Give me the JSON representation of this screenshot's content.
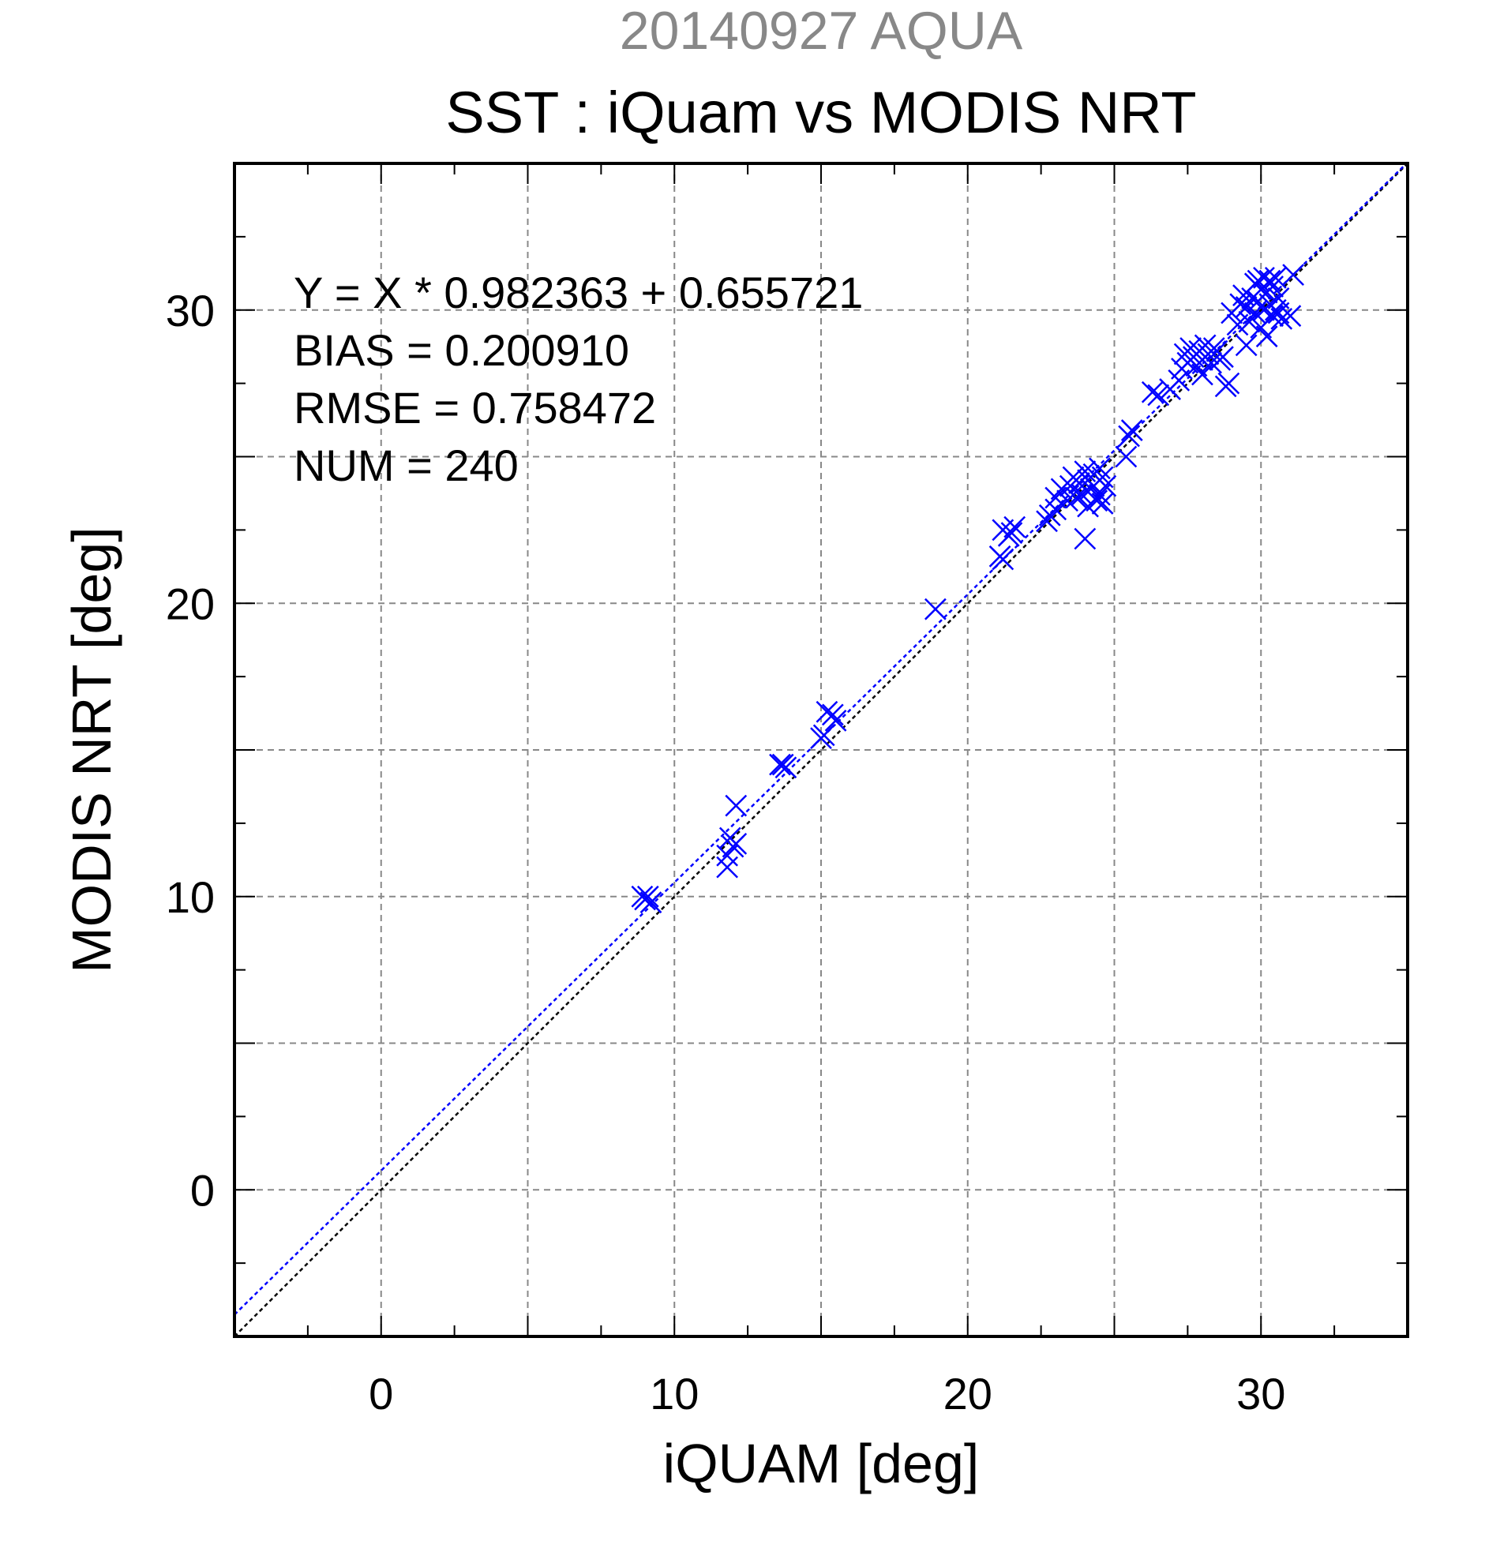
{
  "chart_data": {
    "type": "scatter",
    "title": "20140927 AQUA",
    "subtitle": "SST : iQuam vs MODIS NRT",
    "xlabel": "iQUAM [deg]",
    "ylabel": "MODIS NRT [deg]",
    "xlim": [
      -5,
      35
    ],
    "ylim": [
      -5,
      35
    ],
    "xticks": [
      0,
      10,
      20,
      30
    ],
    "yticks": [
      0,
      10,
      20,
      30
    ],
    "grid": true,
    "annotations": [
      "Y = X * 0.982363 + 0.655721",
      "BIAS = 0.200910",
      "RMSE = 0.758472",
      "NUM = 240"
    ],
    "fit_line": {
      "slope": 0.982363,
      "intercept": 0.655721,
      "color": "#0000ff"
    },
    "identity_line": {
      "slope": 1,
      "intercept": 0,
      "color": "#000000"
    },
    "series": [
      {
        "marker": "x",
        "color": "#0000ff",
        "points": [
          [
            8.9,
            10.0
          ],
          [
            9.1,
            10.0
          ],
          [
            9.2,
            9.8
          ],
          [
            9.0,
            9.9
          ],
          [
            11.8,
            11.0
          ],
          [
            11.8,
            11.4
          ],
          [
            11.9,
            12.0
          ],
          [
            12.0,
            11.7
          ],
          [
            12.1,
            11.8
          ],
          [
            12.1,
            13.1
          ],
          [
            13.6,
            14.5
          ],
          [
            13.7,
            14.5
          ],
          [
            13.8,
            14.4
          ],
          [
            15.0,
            15.4
          ],
          [
            15.1,
            15.5
          ],
          [
            15.2,
            16.3
          ],
          [
            15.4,
            16.2
          ],
          [
            15.5,
            16.0
          ],
          [
            18.9,
            19.8
          ],
          [
            21.1,
            21.6
          ],
          [
            21.2,
            21.5
          ],
          [
            21.2,
            22.5
          ],
          [
            21.4,
            22.3
          ],
          [
            21.5,
            22.4
          ],
          [
            21.6,
            22.6
          ],
          [
            22.7,
            22.8
          ],
          [
            22.8,
            23.0
          ],
          [
            23.0,
            23.2
          ],
          [
            23.0,
            23.6
          ],
          [
            23.2,
            23.9
          ],
          [
            23.4,
            23.5
          ],
          [
            23.5,
            24.0
          ],
          [
            23.6,
            24.3
          ],
          [
            23.7,
            23.6
          ],
          [
            23.8,
            24.1
          ],
          [
            23.9,
            23.7
          ],
          [
            24.0,
            24.5
          ],
          [
            24.0,
            22.2
          ],
          [
            24.1,
            24.2
          ],
          [
            24.2,
            23.9
          ],
          [
            24.3,
            24.4
          ],
          [
            24.3,
            24.0
          ],
          [
            24.4,
            23.5
          ],
          [
            24.5,
            24.6
          ],
          [
            24.5,
            23.7
          ],
          [
            24.6,
            23.4
          ],
          [
            24.6,
            24.3
          ],
          [
            24.7,
            24.0
          ],
          [
            24.1,
            23.3
          ],
          [
            25.4,
            25.0
          ],
          [
            25.5,
            25.7
          ],
          [
            25.6,
            25.9
          ],
          [
            26.3,
            27.2
          ],
          [
            26.5,
            27.1
          ],
          [
            26.9,
            27.3
          ],
          [
            27.2,
            27.6
          ],
          [
            27.3,
            28.0
          ],
          [
            27.4,
            28.5
          ],
          [
            27.5,
            28.2
          ],
          [
            27.6,
            28.7
          ],
          [
            27.7,
            28.4
          ],
          [
            27.8,
            28.1
          ],
          [
            27.9,
            28.6
          ],
          [
            28.0,
            28.3
          ],
          [
            28.0,
            27.8
          ],
          [
            28.1,
            28.8
          ],
          [
            28.2,
            28.5
          ],
          [
            28.3,
            28.2
          ],
          [
            28.4,
            28.7
          ],
          [
            28.5,
            28.6
          ],
          [
            28.6,
            28.3
          ],
          [
            28.7,
            28.4
          ],
          [
            28.8,
            27.4
          ],
          [
            28.9,
            27.5
          ],
          [
            29.0,
            29.9
          ],
          [
            29.2,
            29.5
          ],
          [
            29.3,
            30.2
          ],
          [
            29.4,
            30.5
          ],
          [
            29.5,
            30.1
          ],
          [
            29.5,
            28.8
          ],
          [
            29.6,
            29.6
          ],
          [
            29.7,
            30.4
          ],
          [
            29.8,
            30.9
          ],
          [
            29.9,
            30.3
          ],
          [
            30.0,
            30.7
          ],
          [
            30.0,
            29.4
          ],
          [
            30.1,
            31.1
          ],
          [
            30.1,
            30.0
          ],
          [
            30.2,
            30.6
          ],
          [
            30.2,
            29.1
          ],
          [
            30.3,
            31.0
          ],
          [
            30.3,
            30.2
          ],
          [
            30.4,
            29.8
          ],
          [
            30.4,
            30.8
          ],
          [
            30.5,
            31.1
          ],
          [
            30.5,
            30.0
          ],
          [
            30.6,
            29.9
          ],
          [
            30.7,
            29.7
          ],
          [
            31.0,
            29.8
          ],
          [
            31.1,
            31.2
          ],
          [
            29.8,
            29.9
          ],
          [
            29.9,
            31.0
          ],
          [
            30.6,
            30.4
          ]
        ]
      }
    ]
  }
}
